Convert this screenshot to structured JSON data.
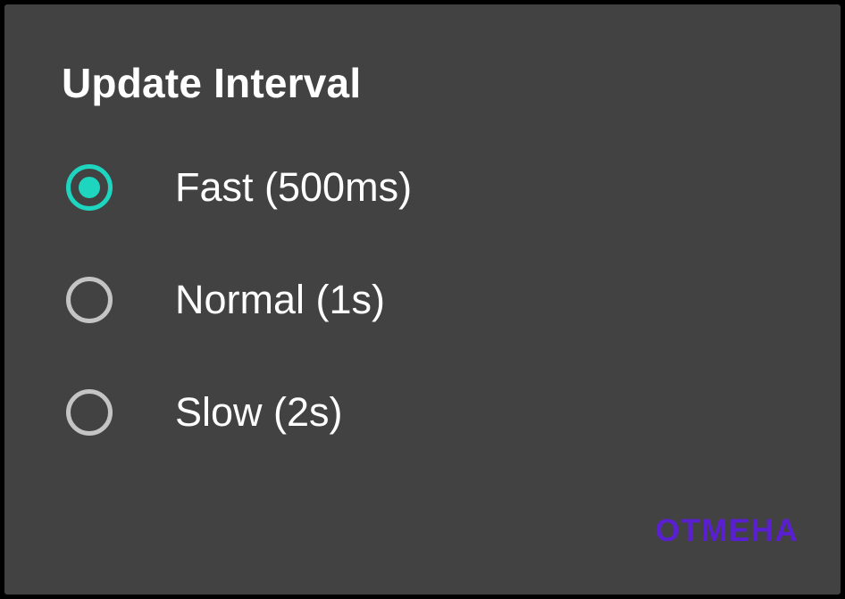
{
  "dialog": {
    "title": "Update Interval",
    "options": [
      {
        "label": "Fast (500ms)",
        "selected": true
      },
      {
        "label": "Normal (1s)",
        "selected": false
      },
      {
        "label": "Slow (2s)",
        "selected": false
      }
    ],
    "cancel_label": "ОТМЕНА"
  },
  "colors": {
    "background": "#424242",
    "accent": "#1ed6bf",
    "radio_unchecked": "#c4c4c4",
    "button_text": "#5a1fd1",
    "text": "#ffffff"
  }
}
